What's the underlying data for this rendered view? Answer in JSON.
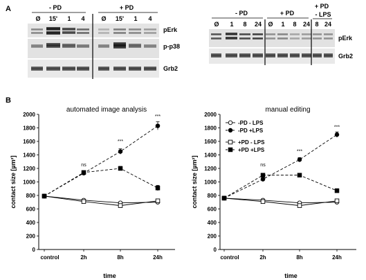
{
  "panels": {
    "A": {
      "label": "A",
      "blot_left": {
        "group_labels": [
          "- PD",
          "+ PD"
        ],
        "lane_labels": [
          "Ø",
          "15'",
          "1",
          "4",
          "Ø",
          "15'",
          "1",
          "4"
        ],
        "row_labels": [
          "pErk",
          "p-p38",
          "Grb2"
        ]
      },
      "blot_right": {
        "group_labels": [
          "- PD",
          "+ PD",
          "+ PD",
          "- LPS"
        ],
        "lane_labels": [
          "Ø",
          "1",
          "8",
          "24",
          "Ø",
          "1",
          "8",
          "24",
          "8",
          "24"
        ],
        "row_labels": [
          "pErk",
          "Grb2"
        ]
      }
    },
    "B": {
      "label": "B"
    }
  },
  "chart_data": [
    {
      "type": "line",
      "title": "automated image analysis",
      "xlabel": "time",
      "ylabel": "contact size [µm²]",
      "categories": [
        "control",
        "2h",
        "8h",
        "24h"
      ],
      "ylim": [
        0,
        2000
      ],
      "yticks": [
        "0",
        "200",
        "400",
        "600",
        "800",
        "1000",
        "1200",
        "1400",
        "1600",
        "1800",
        "2000"
      ],
      "annotations": [
        {
          "category": "2h",
          "y": 1230,
          "text": "ns"
        },
        {
          "category": "8h",
          "y": 1580,
          "text": "***"
        },
        {
          "category": "24h",
          "y": 1950,
          "text": "***"
        }
      ],
      "series": [
        {
          "style": "open-circle-solid",
          "values": [
            790,
            730,
            690,
            700
          ],
          "err": [
            10,
            15,
            15,
            15
          ]
        },
        {
          "style": "filled-circle-dashed",
          "values": [
            790,
            1130,
            1450,
            1830
          ],
          "err": [
            10,
            20,
            40,
            60
          ]
        },
        {
          "style": "open-square-solid",
          "values": [
            790,
            710,
            650,
            720
          ],
          "err": [
            10,
            15,
            15,
            15
          ]
        },
        {
          "style": "filled-square-dashed",
          "values": [
            790,
            1140,
            1200,
            910
          ],
          "err": [
            10,
            20,
            30,
            40
          ]
        }
      ]
    },
    {
      "type": "line",
      "title": "manual editing",
      "xlabel": "time",
      "ylabel": "contact size [µm²]",
      "categories": [
        "control",
        "2h",
        "8h",
        "24h"
      ],
      "ylim": [
        0,
        2000
      ],
      "yticks": [
        "0",
        "200",
        "400",
        "600",
        "800",
        "1000",
        "1200",
        "1400",
        "1600",
        "1800",
        "2000"
      ],
      "legend_position": "top-left",
      "annotations": [
        {
          "category": "2h",
          "y": 1230,
          "text": "ns"
        },
        {
          "category": "8h",
          "y": 1430,
          "text": "***"
        },
        {
          "category": "24h",
          "y": 1790,
          "text": "***"
        }
      ],
      "series": [
        {
          "name": "-PD - LPS",
          "style": "open-circle-solid",
          "values": [
            760,
            730,
            690,
            700
          ],
          "err": [
            10,
            15,
            15,
            15
          ]
        },
        {
          "name": "-PD +LPS",
          "style": "filled-circle-dashed",
          "values": [
            760,
            1040,
            1330,
            1700
          ],
          "err": [
            10,
            20,
            30,
            40
          ]
        },
        {
          "name": "+PD - LPS",
          "style": "open-square-solid",
          "values": [
            760,
            710,
            650,
            720
          ],
          "err": [
            10,
            15,
            15,
            15
          ]
        },
        {
          "name": "+PD +LPS",
          "style": "filled-square-dashed",
          "values": [
            760,
            1100,
            1100,
            870
          ],
          "err": [
            10,
            20,
            20,
            30
          ]
        }
      ]
    }
  ]
}
